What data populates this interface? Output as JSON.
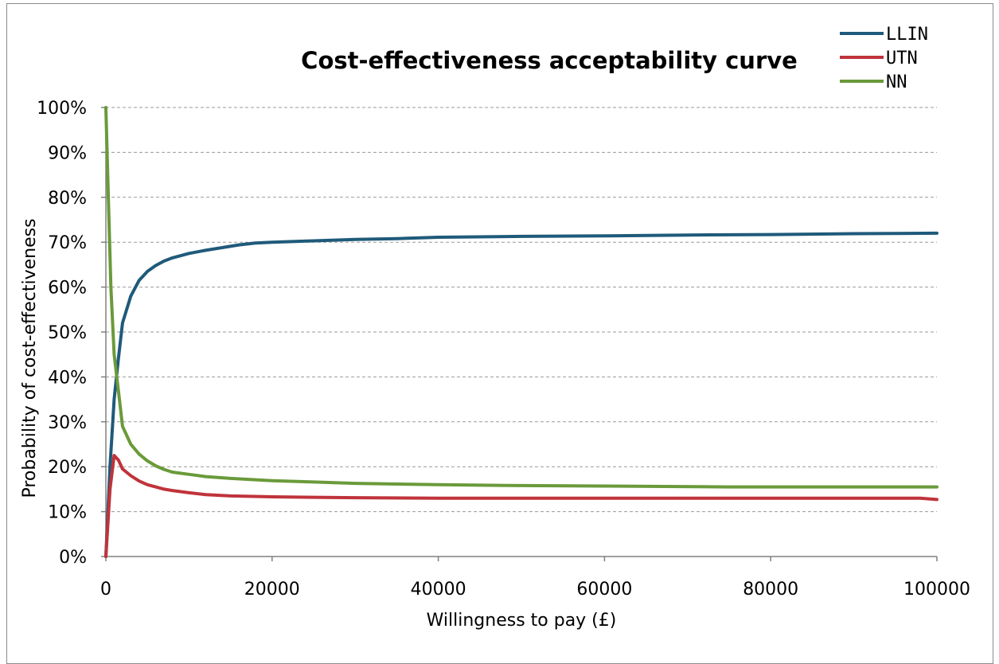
{
  "chart_data": {
    "type": "line",
    "title": "Cost-effectiveness acceptability curve",
    "xlabel": "Willingness to pay (£)",
    "ylabel": "Probability of cost-effectiveness",
    "xlim": [
      0,
      100000
    ],
    "ylim": [
      0,
      1
    ],
    "x_ticks": [
      0,
      20000,
      40000,
      60000,
      80000,
      100000
    ],
    "x_tick_labels": [
      "0",
      "20000",
      "40000",
      "60000",
      "80000",
      "100000"
    ],
    "y_ticks": [
      0,
      0.1,
      0.2,
      0.3,
      0.4,
      0.5,
      0.6,
      0.7,
      0.8,
      0.9,
      1.0
    ],
    "y_tick_labels": [
      "0%",
      "10%",
      "20%",
      "30%",
      "40%",
      "50%",
      "60%",
      "70%",
      "80%",
      "90%",
      "100%"
    ],
    "grid": "horizontal-dashed",
    "legend_position": "top-right",
    "series": [
      {
        "name": "LLIN",
        "color": "#1f5a7a",
        "points": [
          [
            0,
            0.0
          ],
          [
            500,
            0.2
          ],
          [
            1000,
            0.35
          ],
          [
            1500,
            0.44
          ],
          [
            2000,
            0.52
          ],
          [
            3000,
            0.58
          ],
          [
            4000,
            0.615
          ],
          [
            5000,
            0.635
          ],
          [
            6000,
            0.648
          ],
          [
            7000,
            0.658
          ],
          [
            8000,
            0.665
          ],
          [
            10000,
            0.675
          ],
          [
            12000,
            0.682
          ],
          [
            14000,
            0.688
          ],
          [
            16000,
            0.694
          ],
          [
            18000,
            0.698
          ],
          [
            20000,
            0.7
          ],
          [
            25000,
            0.703
          ],
          [
            30000,
            0.706
          ],
          [
            35000,
            0.708
          ],
          [
            40000,
            0.711
          ],
          [
            50000,
            0.713
          ],
          [
            60000,
            0.714
          ],
          [
            70000,
            0.716
          ],
          [
            80000,
            0.717
          ],
          [
            90000,
            0.719
          ],
          [
            100000,
            0.72
          ]
        ]
      },
      {
        "name": "UTN",
        "color": "#c0333a",
        "points": [
          [
            0,
            0.0
          ],
          [
            500,
            0.15
          ],
          [
            1000,
            0.225
          ],
          [
            1500,
            0.215
          ],
          [
            2000,
            0.195
          ],
          [
            3000,
            0.18
          ],
          [
            4000,
            0.168
          ],
          [
            5000,
            0.16
          ],
          [
            6000,
            0.155
          ],
          [
            7000,
            0.15
          ],
          [
            8000,
            0.147
          ],
          [
            10000,
            0.142
          ],
          [
            12000,
            0.138
          ],
          [
            15000,
            0.135
          ],
          [
            20000,
            0.133
          ],
          [
            25000,
            0.132
          ],
          [
            30000,
            0.131
          ],
          [
            40000,
            0.13
          ],
          [
            60000,
            0.13
          ],
          [
            80000,
            0.13
          ],
          [
            98000,
            0.13
          ],
          [
            100000,
            0.127
          ]
        ]
      },
      {
        "name": "NN",
        "color": "#6a9a3a",
        "points": [
          [
            0,
            1.0
          ],
          [
            300,
            0.8
          ],
          [
            600,
            0.6
          ],
          [
            1000,
            0.45
          ],
          [
            1500,
            0.37
          ],
          [
            2000,
            0.29
          ],
          [
            3000,
            0.25
          ],
          [
            4000,
            0.228
          ],
          [
            5000,
            0.213
          ],
          [
            6000,
            0.202
          ],
          [
            7000,
            0.194
          ],
          [
            8000,
            0.188
          ],
          [
            10000,
            0.183
          ],
          [
            12000,
            0.178
          ],
          [
            15000,
            0.174
          ],
          [
            20000,
            0.169
          ],
          [
            25000,
            0.166
          ],
          [
            30000,
            0.163
          ],
          [
            40000,
            0.16
          ],
          [
            50000,
            0.158
          ],
          [
            60000,
            0.157
          ],
          [
            75000,
            0.155
          ],
          [
            90000,
            0.155
          ],
          [
            100000,
            0.155
          ]
        ]
      }
    ]
  }
}
